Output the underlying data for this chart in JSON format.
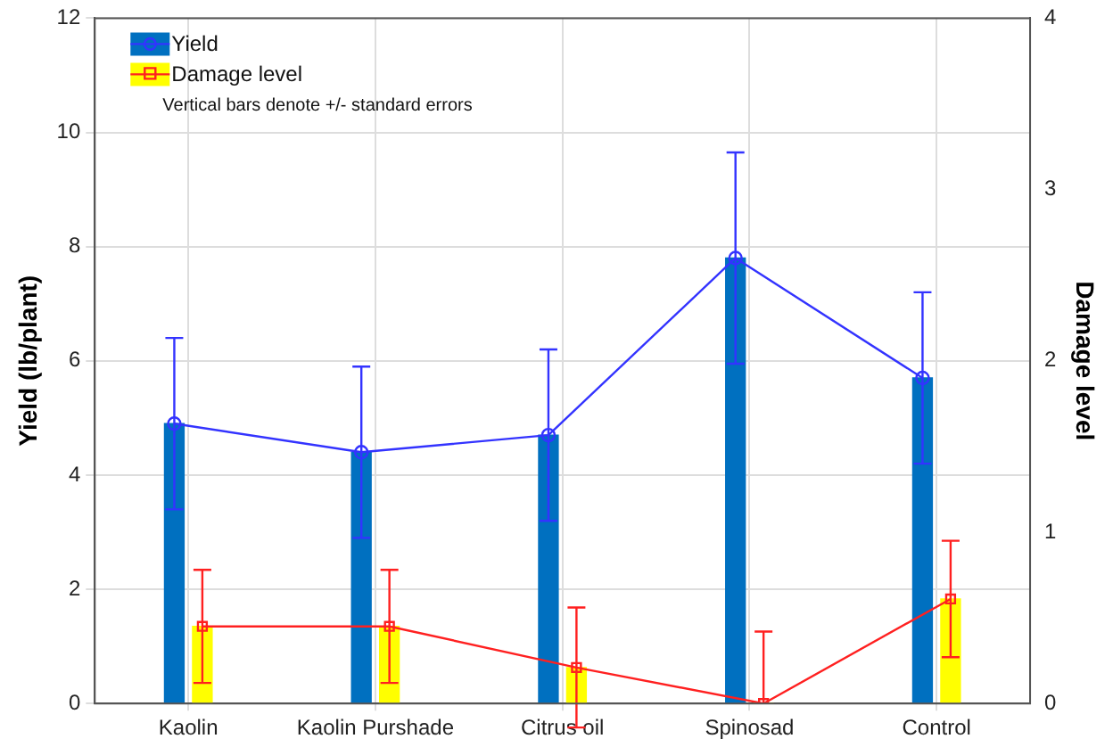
{
  "chart_data": {
    "type": "bar",
    "ylabel": "Yield (lb/plant)",
    "y2label": "Damage level",
    "categories": [
      "Kaolin",
      "Kaolin Purshade",
      "Citrus oil",
      "Spinosad",
      "Control"
    ],
    "series": [
      {
        "name": "Yield",
        "color": "#0070c0",
        "values": [
          4.9,
          4.4,
          4.7,
          7.8,
          5.7
        ]
      },
      {
        "name": "Damage level",
        "axis": "y2",
        "color": "#ffff00",
        "values": [
          0.45,
          0.45,
          0.21,
          0,
          0.61
        ]
      },
      {
        "type": "line",
        "color": "#3333ff",
        "marker": "circle",
        "values": [
          4.9,
          4.4,
          4.7,
          7.8,
          5.7
        ],
        "errors": [
          1.5,
          1.5,
          1.5,
          1.85,
          1.5
        ]
      },
      {
        "type": "line",
        "axis": "y2",
        "color": "#ff2020",
        "marker": "square",
        "values": [
          0.45,
          0.45,
          0.21,
          0,
          0.61
        ],
        "errors": [
          0.33,
          0.33,
          0.35,
          [
            0,
            0.42
          ],
          0.34
        ]
      }
    ],
    "ylim": [
      0,
      12
    ],
    "yticks": [
      0,
      2,
      4,
      6,
      8,
      10,
      12
    ],
    "y2lim": [
      0,
      4
    ],
    "y2ticks": [
      0,
      1,
      2,
      3,
      4
    ],
    "grid": true,
    "legend": "top left",
    "annotations": [
      "Vertical bars denote +/- standard errors"
    ]
  }
}
